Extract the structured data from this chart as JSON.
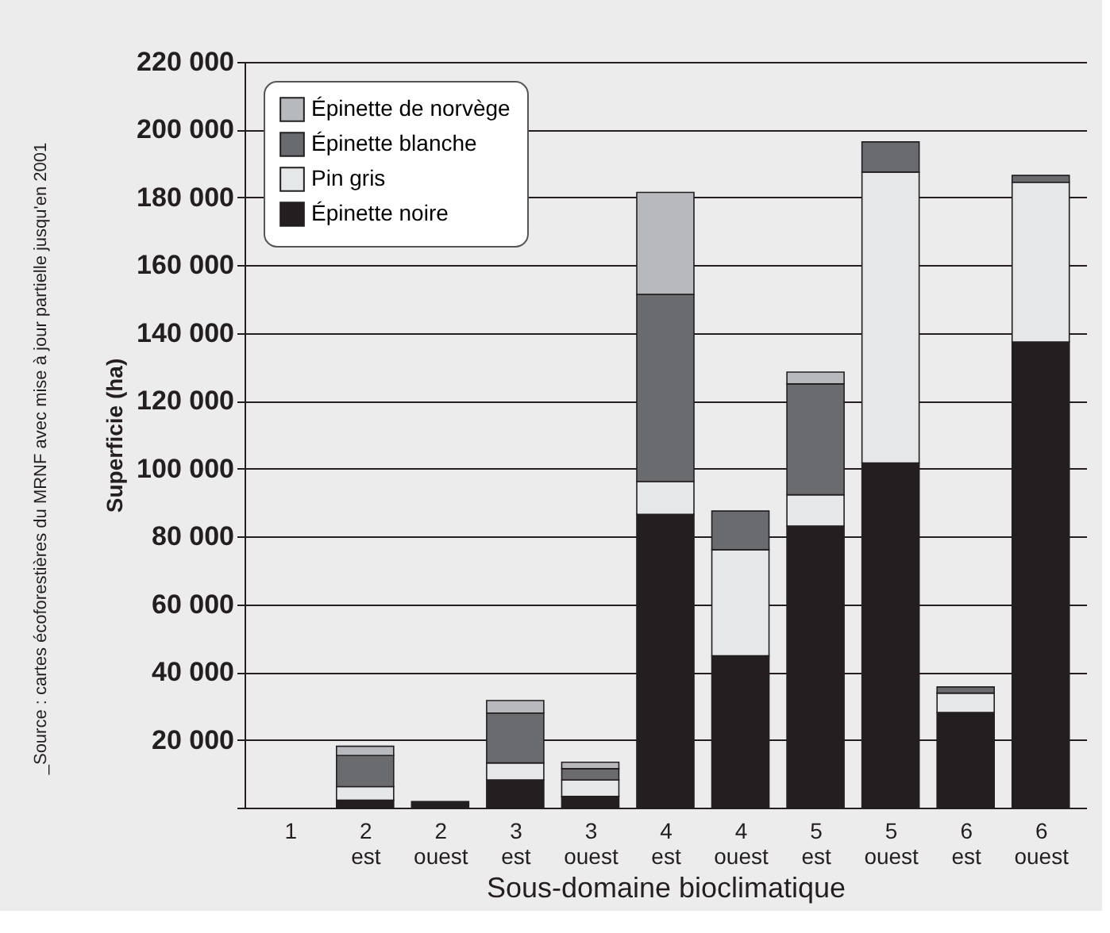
{
  "chart_data": {
    "type": "bar",
    "stacked": true,
    "xlabel": "Sous-domaine bioclimatique",
    "ylabel": "Superficie (ha)",
    "categories": [
      "1",
      "2 est",
      "2 ouest",
      "3 est",
      "3 ouest",
      "4 est",
      "4 ouest",
      "5 est",
      "5 ouest",
      "6 est",
      "6 ouest"
    ],
    "series": [
      {
        "name": "Épinette noire",
        "color": "#231f20",
        "values": [
          null,
          2200,
          1800,
          8200,
          3300,
          86500,
          44800,
          83100,
          101700,
          28100,
          137400
        ]
      },
      {
        "name": "Pin gris",
        "color": "#e6e7e8",
        "values": [
          null,
          4000,
          null,
          5000,
          4900,
          9700,
          31300,
          9200,
          85800,
          5700,
          47100
        ]
      },
      {
        "name": "Épinette blanche",
        "color": "#6a6b6e",
        "values": [
          null,
          9200,
          null,
          14700,
          3300,
          55200,
          11400,
          32700,
          8900,
          1800,
          2000
        ]
      },
      {
        "name": "Épinette de norvège",
        "color": "#b8b9bd",
        "values": [
          null,
          2700,
          null,
          3700,
          1900,
          30100,
          null,
          3500,
          null,
          null,
          null
        ]
      }
    ],
    "ylim": [
      0,
      220000
    ],
    "yticks": [
      {
        "value": 0,
        "label": null
      },
      {
        "value": 20000,
        "label": "20 000"
      },
      {
        "value": 40000,
        "label": "40 000"
      },
      {
        "value": 60000,
        "label": "60 000"
      },
      {
        "value": 80000,
        "label": "80 000"
      },
      {
        "value": 100000,
        "label": "100 000"
      },
      {
        "value": 120000,
        "label": "120 000"
      },
      {
        "value": 140000,
        "label": "140 000"
      },
      {
        "value": 160000,
        "label": "160 000"
      },
      {
        "value": 180000,
        "label": "180 000"
      },
      {
        "value": 200000,
        "label": "200 000"
      },
      {
        "value": 220000,
        "label": "220 000"
      }
    ],
    "grid": "y",
    "legend": "top left",
    "annotations": [
      "_Source : cartes écoforestières du MRNF avec mise à jour partielle jusqu'en 2001"
    ]
  }
}
